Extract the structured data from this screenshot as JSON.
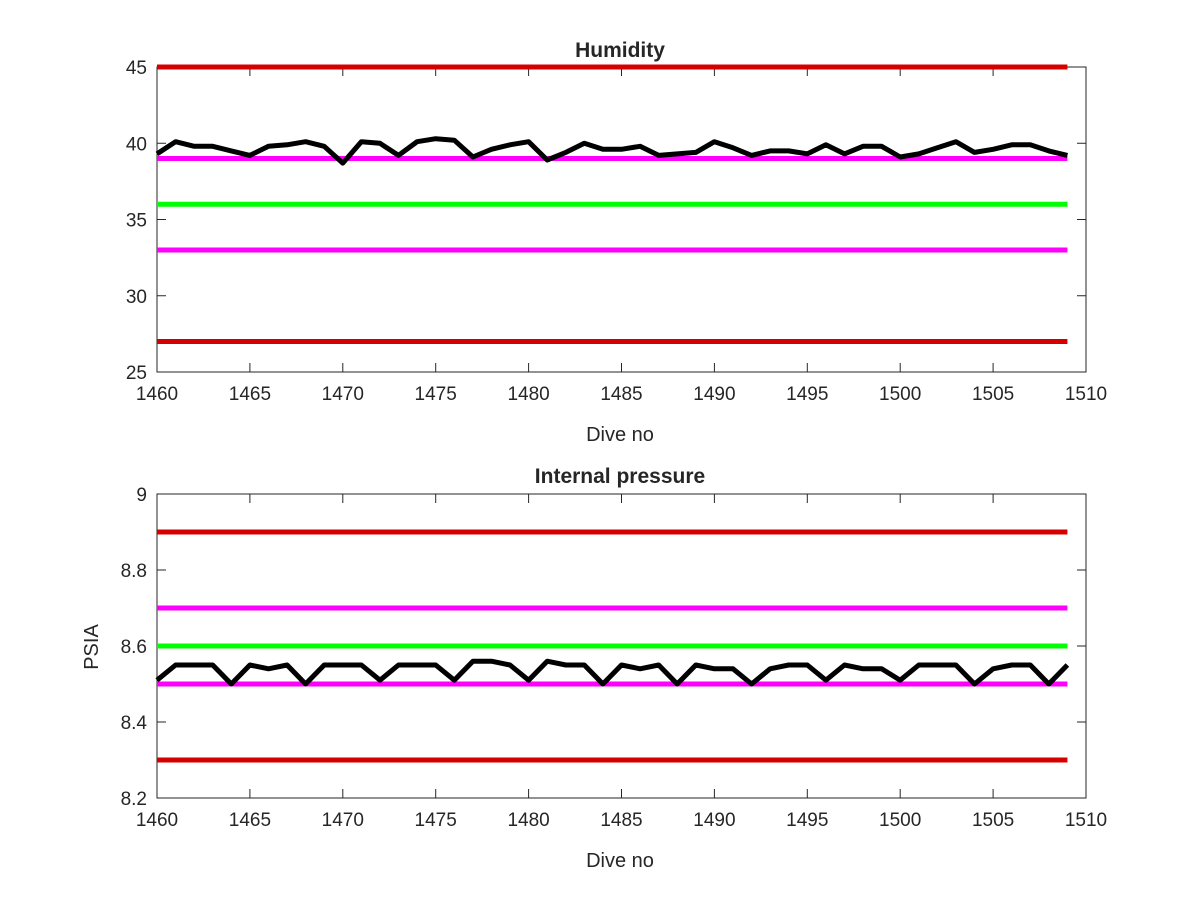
{
  "chart_data": [
    {
      "type": "line",
      "title": "Humidity",
      "xlabel": "Dive no",
      "ylabel": "",
      "xlim": [
        1460,
        1510
      ],
      "ylim": [
        25,
        45
      ],
      "xticks": [
        1460,
        1465,
        1470,
        1475,
        1480,
        1485,
        1490,
        1495,
        1500,
        1505,
        1510
      ],
      "yticks": [
        25,
        30,
        35,
        40,
        45
      ],
      "grid": false,
      "series": [
        {
          "color": "#000000",
          "x": [
            1460,
            1461,
            1462,
            1463,
            1464,
            1465,
            1466,
            1467,
            1468,
            1469,
            1470,
            1471,
            1472,
            1473,
            1474,
            1475,
            1476,
            1477,
            1478,
            1479,
            1480,
            1481,
            1482,
            1483,
            1484,
            1485,
            1486,
            1487,
            1488,
            1489,
            1490,
            1491,
            1492,
            1493,
            1494,
            1495,
            1496,
            1497,
            1498,
            1499,
            1500,
            1501,
            1502,
            1503,
            1504,
            1505,
            1506,
            1507,
            1508,
            1509
          ],
          "y": [
            39.3,
            40.1,
            39.8,
            39.8,
            39.5,
            39.2,
            39.8,
            39.9,
            40.1,
            39.8,
            38.7,
            40.1,
            40.0,
            39.2,
            40.1,
            40.3,
            40.2,
            39.1,
            39.6,
            39.9,
            40.1,
            38.9,
            39.4,
            40.0,
            39.6,
            39.6,
            39.8,
            39.2,
            39.3,
            39.4,
            40.1,
            39.7,
            39.2,
            39.5,
            39.5,
            39.3,
            39.9,
            39.3,
            39.8,
            39.8,
            39.1,
            39.3,
            39.7,
            40.1,
            39.4,
            39.6,
            39.9,
            39.9,
            39.5,
            39.2
          ]
        }
      ],
      "reference_lines": [
        {
          "y": 45,
          "color": "#d40000"
        },
        {
          "y": 39,
          "color": "#ff00ff"
        },
        {
          "y": 36,
          "color": "#00ff00"
        },
        {
          "y": 33,
          "color": "#ff00ff"
        },
        {
          "y": 27,
          "color": "#d40000"
        }
      ]
    },
    {
      "type": "line",
      "title": "Internal pressure",
      "xlabel": "Dive no",
      "ylabel": "PSIA",
      "xlim": [
        1460,
        1510
      ],
      "ylim": [
        8.2,
        9
      ],
      "xticks": [
        1460,
        1465,
        1470,
        1475,
        1480,
        1485,
        1490,
        1495,
        1500,
        1505,
        1510
      ],
      "yticks": [
        8.2,
        8.4,
        8.6,
        8.8,
        9
      ],
      "grid": false,
      "series": [
        {
          "color": "#000000",
          "x": [
            1460,
            1461,
            1462,
            1463,
            1464,
            1465,
            1466,
            1467,
            1468,
            1469,
            1470,
            1471,
            1472,
            1473,
            1474,
            1475,
            1476,
            1477,
            1478,
            1479,
            1480,
            1481,
            1482,
            1483,
            1484,
            1485,
            1486,
            1487,
            1488,
            1489,
            1490,
            1491,
            1492,
            1493,
            1494,
            1495,
            1496,
            1497,
            1498,
            1499,
            1500,
            1501,
            1502,
            1503,
            1504,
            1505,
            1506,
            1507,
            1508,
            1509
          ],
          "y": [
            8.51,
            8.55,
            8.55,
            8.55,
            8.5,
            8.55,
            8.54,
            8.55,
            8.5,
            8.55,
            8.55,
            8.55,
            8.51,
            8.55,
            8.55,
            8.55,
            8.51,
            8.56,
            8.56,
            8.55,
            8.51,
            8.56,
            8.55,
            8.55,
            8.5,
            8.55,
            8.54,
            8.55,
            8.5,
            8.55,
            8.54,
            8.54,
            8.5,
            8.54,
            8.55,
            8.55,
            8.51,
            8.55,
            8.54,
            8.54,
            8.51,
            8.55,
            8.55,
            8.55,
            8.5,
            8.54,
            8.55,
            8.55,
            8.5,
            8.55
          ]
        }
      ],
      "reference_lines": [
        {
          "y": 8.9,
          "color": "#d40000"
        },
        {
          "y": 8.7,
          "color": "#ff00ff"
        },
        {
          "y": 8.6,
          "color": "#00ff00"
        },
        {
          "y": 8.5,
          "color": "#ff00ff"
        },
        {
          "y": 8.3,
          "color": "#d40000"
        }
      ]
    }
  ]
}
